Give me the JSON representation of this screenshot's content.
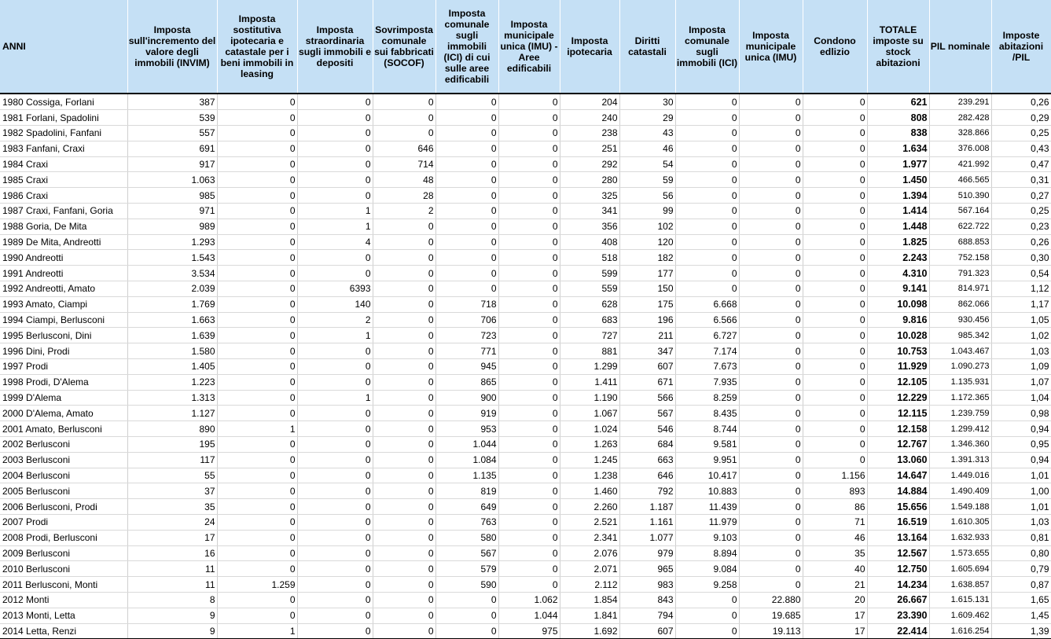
{
  "headers": [
    "ANNI",
    "Imposta sull'incremento del valore degli immobili (INVIM)",
    "Imposta sostitutiva ipotecaria e catastale per i beni immobili in leasing",
    "Imposta straordinaria sugli immobili e depositi",
    "Sovrimposta comunale sui fabbricati (SOCOF)",
    "Imposta comunale sugli immobili (ICI) di cui sulle aree edificabili",
    "Imposta municipale unica (IMU) - Aree edificabili",
    "Imposta ipotecaria",
    "Diritti catastali",
    "Imposta comunale sugli immobili (ICI)",
    "Imposta municipale unica (IMU)",
    "Condono edlizio",
    "TOTALE imposte su stock abitazioni",
    "PIL nominale",
    "Imposte abitazioni /PIL"
  ],
  "rows": [
    [
      "1980 Cossiga, Forlani",
      "387",
      "0",
      "0",
      "0",
      "0",
      "0",
      "204",
      "30",
      "0",
      "0",
      "0",
      "621",
      "239.291",
      "0,26"
    ],
    [
      "1981 Forlani, Spadolini",
      "539",
      "0",
      "0",
      "0",
      "0",
      "0",
      "240",
      "29",
      "0",
      "0",
      "0",
      "808",
      "282.428",
      "0,29"
    ],
    [
      "1982 Spadolini, Fanfani",
      "557",
      "0",
      "0",
      "0",
      "0",
      "0",
      "238",
      "43",
      "0",
      "0",
      "0",
      "838",
      "328.866",
      "0,25"
    ],
    [
      "1983 Fanfani, Craxi",
      "691",
      "0",
      "0",
      "646",
      "0",
      "0",
      "251",
      "46",
      "0",
      "0",
      "0",
      "1.634",
      "376.008",
      "0,43"
    ],
    [
      "1984 Craxi",
      "917",
      "0",
      "0",
      "714",
      "0",
      "0",
      "292",
      "54",
      "0",
      "0",
      "0",
      "1.977",
      "421.992",
      "0,47"
    ],
    [
      "1985 Craxi",
      "1.063",
      "0",
      "0",
      "48",
      "0",
      "0",
      "280",
      "59",
      "0",
      "0",
      "0",
      "1.450",
      "466.565",
      "0,31"
    ],
    [
      "1986 Craxi",
      "985",
      "0",
      "0",
      "28",
      "0",
      "0",
      "325",
      "56",
      "0",
      "0",
      "0",
      "1.394",
      "510.390",
      "0,27"
    ],
    [
      "1987 Craxi, Fanfani, Goria",
      "971",
      "0",
      "1",
      "2",
      "0",
      "0",
      "341",
      "99",
      "0",
      "0",
      "0",
      "1.414",
      "567.164",
      "0,25"
    ],
    [
      "1988 Goria, De Mita",
      "989",
      "0",
      "1",
      "0",
      "0",
      "0",
      "356",
      "102",
      "0",
      "0",
      "0",
      "1.448",
      "622.722",
      "0,23"
    ],
    [
      "1989 De Mita, Andreotti",
      "1.293",
      "0",
      "4",
      "0",
      "0",
      "0",
      "408",
      "120",
      "0",
      "0",
      "0",
      "1.825",
      "688.853",
      "0,26"
    ],
    [
      "1990 Andreotti",
      "1.543",
      "0",
      "0",
      "0",
      "0",
      "0",
      "518",
      "182",
      "0",
      "0",
      "0",
      "2.243",
      "752.158",
      "0,30"
    ],
    [
      "1991 Andreotti",
      "3.534",
      "0",
      "0",
      "0",
      "0",
      "0",
      "599",
      "177",
      "0",
      "0",
      "0",
      "4.310",
      "791.323",
      "0,54"
    ],
    [
      "1992 Andreotti, Amato",
      "2.039",
      "0",
      "6393",
      "0",
      "0",
      "0",
      "559",
      "150",
      "0",
      "0",
      "0",
      "9.141",
      "814.971",
      "1,12"
    ],
    [
      "1993 Amato, Ciampi",
      "1.769",
      "0",
      "140",
      "0",
      "718",
      "0",
      "628",
      "175",
      "6.668",
      "0",
      "0",
      "10.098",
      "862.066",
      "1,17"
    ],
    [
      "1994 Ciampi, Berlusconi",
      "1.663",
      "0",
      "2",
      "0",
      "706",
      "0",
      "683",
      "196",
      "6.566",
      "0",
      "0",
      "9.816",
      "930.456",
      "1,05"
    ],
    [
      "1995 Berlusconi, Dini",
      "1.639",
      "0",
      "1",
      "0",
      "723",
      "0",
      "727",
      "211",
      "6.727",
      "0",
      "0",
      "10.028",
      "985.342",
      "1,02"
    ],
    [
      "1996 Dini, Prodi",
      "1.580",
      "0",
      "0",
      "0",
      "771",
      "0",
      "881",
      "347",
      "7.174",
      "0",
      "0",
      "10.753",
      "1.043.467",
      "1,03"
    ],
    [
      "1997 Prodi",
      "1.405",
      "0",
      "0",
      "0",
      "945",
      "0",
      "1.299",
      "607",
      "7.673",
      "0",
      "0",
      "11.929",
      "1.090.273",
      "1,09"
    ],
    [
      "1998 Prodi, D'Alema",
      "1.223",
      "0",
      "0",
      "0",
      "865",
      "0",
      "1.411",
      "671",
      "7.935",
      "0",
      "0",
      "12.105",
      "1.135.931",
      "1,07"
    ],
    [
      "1999 D'Alema",
      "1.313",
      "0",
      "1",
      "0",
      "900",
      "0",
      "1.190",
      "566",
      "8.259",
      "0",
      "0",
      "12.229",
      "1.172.365",
      "1,04"
    ],
    [
      "2000 D'Alema, Amato",
      "1.127",
      "0",
      "0",
      "0",
      "919",
      "0",
      "1.067",
      "567",
      "8.435",
      "0",
      "0",
      "12.115",
      "1.239.759",
      "0,98"
    ],
    [
      "2001 Amato, Berlusconi",
      "890",
      "1",
      "0",
      "0",
      "953",
      "0",
      "1.024",
      "546",
      "8.744",
      "0",
      "0",
      "12.158",
      "1.299.412",
      "0,94"
    ],
    [
      "2002 Berlusconi",
      "195",
      "0",
      "0",
      "0",
      "1.044",
      "0",
      "1.263",
      "684",
      "9.581",
      "0",
      "0",
      "12.767",
      "1.346.360",
      "0,95"
    ],
    [
      "2003 Berlusconi",
      "117",
      "0",
      "0",
      "0",
      "1.084",
      "0",
      "1.245",
      "663",
      "9.951",
      "0",
      "0",
      "13.060",
      "1.391.313",
      "0,94"
    ],
    [
      "2004 Berlusconi",
      "55",
      "0",
      "0",
      "0",
      "1.135",
      "0",
      "1.238",
      "646",
      "10.417",
      "0",
      "1.156",
      "14.647",
      "1.449.016",
      "1,01"
    ],
    [
      "2005 Berlusconi",
      "37",
      "0",
      "0",
      "0",
      "819",
      "0",
      "1.460",
      "792",
      "10.883",
      "0",
      "893",
      "14.884",
      "1.490.409",
      "1,00"
    ],
    [
      "2006 Berlusconi, Prodi",
      "35",
      "0",
      "0",
      "0",
      "649",
      "0",
      "2.260",
      "1.187",
      "11.439",
      "0",
      "86",
      "15.656",
      "1.549.188",
      "1,01"
    ],
    [
      "2007 Prodi",
      "24",
      "0",
      "0",
      "0",
      "763",
      "0",
      "2.521",
      "1.161",
      "11.979",
      "0",
      "71",
      "16.519",
      "1.610.305",
      "1,03"
    ],
    [
      "2008 Prodi, Berlusconi",
      "17",
      "0",
      "0",
      "0",
      "580",
      "0",
      "2.341",
      "1.077",
      "9.103",
      "0",
      "46",
      "13.164",
      "1.632.933",
      "0,81"
    ],
    [
      "2009 Berlusconi",
      "16",
      "0",
      "0",
      "0",
      "567",
      "0",
      "2.076",
      "979",
      "8.894",
      "0",
      "35",
      "12.567",
      "1.573.655",
      "0,80"
    ],
    [
      "2010 Berlusconi",
      "11",
      "0",
      "0",
      "0",
      "579",
      "0",
      "2.071",
      "965",
      "9.084",
      "0",
      "40",
      "12.750",
      "1.605.694",
      "0,79"
    ],
    [
      "2011 Berlusconi, Monti",
      "11",
      "1.259",
      "0",
      "0",
      "590",
      "0",
      "2.112",
      "983",
      "9.258",
      "0",
      "21",
      "14.234",
      "1.638.857",
      "0,87"
    ],
    [
      "2012 Monti",
      "8",
      "0",
      "0",
      "0",
      "0",
      "1.062",
      "1.854",
      "843",
      "0",
      "22.880",
      "20",
      "26.667",
      "1.615.131",
      "1,65"
    ],
    [
      "2013 Monti, Letta",
      "9",
      "0",
      "0",
      "0",
      "0",
      "1.044",
      "1.841",
      "794",
      "0",
      "19.685",
      "17",
      "23.390",
      "1.609.462",
      "1,45"
    ],
    [
      "2014 Letta, Renzi",
      "9",
      "1",
      "0",
      "0",
      "0",
      "975",
      "1.692",
      "607",
      "0",
      "19.113",
      "17",
      "22.414",
      "1.616.254",
      "1,39"
    ]
  ]
}
